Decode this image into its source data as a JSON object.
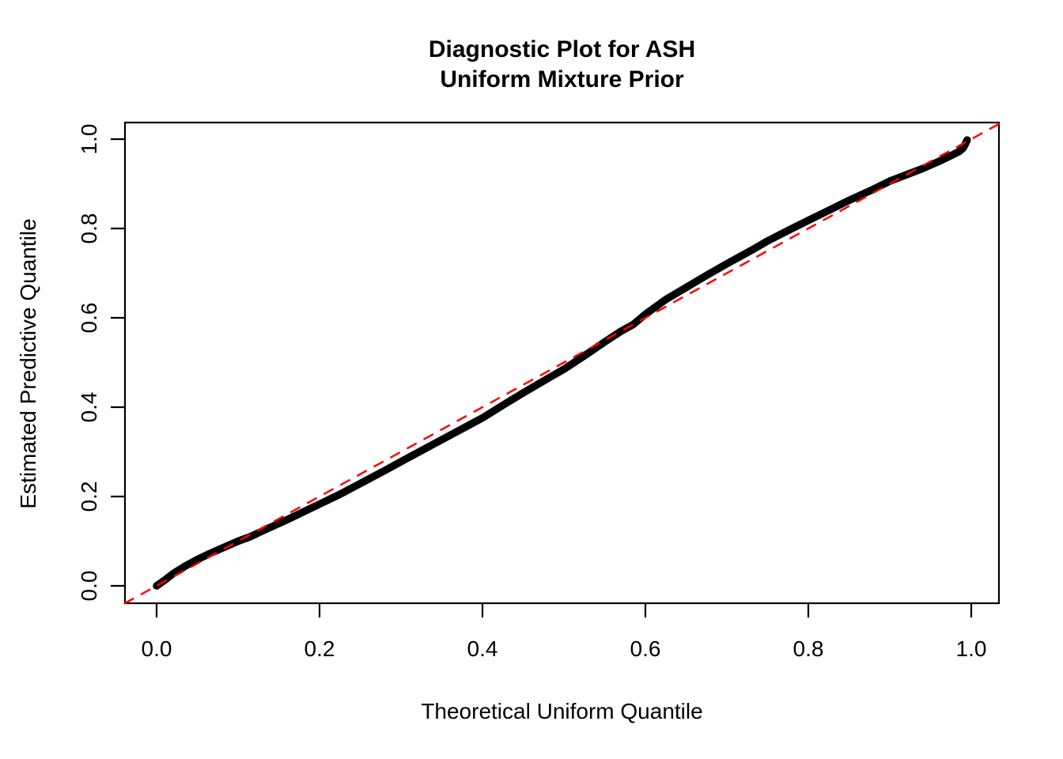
{
  "title": {
    "line1": "Diagnostic Plot for ASH",
    "line2": "Uniform Mixture Prior"
  },
  "axes": {
    "x": {
      "label": "Theoretical Uniform Quantile",
      "ticks": [
        0.0,
        0.2,
        0.4,
        0.6,
        0.8,
        1.0
      ],
      "tick_labels": [
        "0.0",
        "0.2",
        "0.4",
        "0.6",
        "0.8",
        "1.0"
      ]
    },
    "y": {
      "label": "Estimated Predictive Quantile",
      "ticks": [
        0.0,
        0.2,
        0.4,
        0.6,
        0.8,
        1.0
      ],
      "tick_labels": [
        "0.0",
        "0.2",
        "0.4",
        "0.6",
        "0.8",
        "1.0"
      ]
    }
  },
  "colors": {
    "background": "#FFFFFF",
    "axis": "#000000",
    "curve": "#000000",
    "reference": "#FF0000"
  },
  "chart_data": {
    "type": "scatter",
    "title": "Diagnostic Plot for ASH\nUniform Mixture Prior",
    "xlabel": "Theoretical Uniform Quantile",
    "ylabel": "Estimated Predictive Quantile",
    "xlim": [
      -0.04,
      1.04
    ],
    "ylim": [
      -0.04,
      1.04
    ],
    "grid": false,
    "legend": "none",
    "series": [
      {
        "name": "estimated-predictive-quantiles",
        "style": "thick-point-curve",
        "color": "#000000",
        "points": [
          [
            0.0,
            0.0
          ],
          [
            0.01,
            0.013
          ],
          [
            0.02,
            0.027
          ],
          [
            0.035,
            0.044
          ],
          [
            0.05,
            0.059
          ],
          [
            0.065,
            0.072
          ],
          [
            0.08,
            0.084
          ],
          [
            0.1,
            0.1
          ],
          [
            0.115,
            0.11
          ],
          [
            0.13,
            0.123
          ],
          [
            0.16,
            0.148
          ],
          [
            0.2,
            0.183
          ],
          [
            0.225,
            0.205
          ],
          [
            0.25,
            0.229
          ],
          [
            0.28,
            0.258
          ],
          [
            0.31,
            0.288
          ],
          [
            0.35,
            0.327
          ],
          [
            0.4,
            0.376
          ],
          [
            0.43,
            0.41
          ],
          [
            0.45,
            0.432
          ],
          [
            0.48,
            0.464
          ],
          [
            0.5,
            0.485
          ],
          [
            0.53,
            0.521
          ],
          [
            0.55,
            0.546
          ],
          [
            0.57,
            0.57
          ],
          [
            0.585,
            0.585
          ],
          [
            0.6,
            0.608
          ],
          [
            0.625,
            0.641
          ],
          [
            0.65,
            0.668
          ],
          [
            0.675,
            0.695
          ],
          [
            0.7,
            0.721
          ],
          [
            0.73,
            0.751
          ],
          [
            0.75,
            0.772
          ],
          [
            0.78,
            0.8
          ],
          [
            0.8,
            0.818
          ],
          [
            0.83,
            0.845
          ],
          [
            0.85,
            0.863
          ],
          [
            0.88,
            0.888
          ],
          [
            0.9,
            0.906
          ],
          [
            0.92,
            0.92
          ],
          [
            0.94,
            0.934
          ],
          [
            0.96,
            0.95
          ],
          [
            0.975,
            0.963
          ],
          [
            0.985,
            0.972
          ],
          [
            0.99,
            0.98
          ],
          [
            0.993,
            0.99
          ],
          [
            0.995,
            0.998
          ]
        ]
      },
      {
        "name": "reference-diagonal",
        "style": "dashed-line",
        "color": "#FF0000",
        "points": [
          [
            -0.04,
            -0.04
          ],
          [
            1.04,
            1.04
          ]
        ]
      }
    ]
  }
}
